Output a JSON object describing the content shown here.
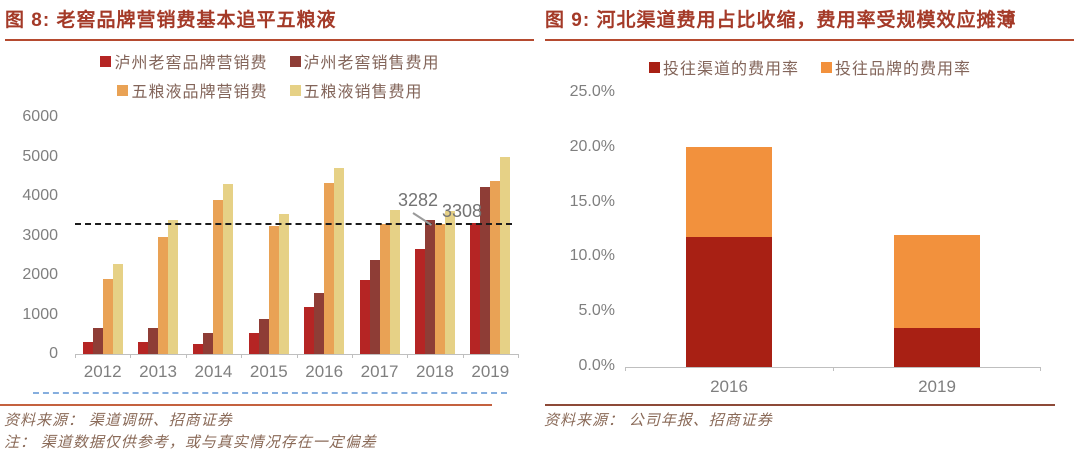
{
  "fig8": {
    "title": "图 8: 老窖品牌营销费基本追平五粮液",
    "source": "资料来源： 渠道调研、招商证券",
    "note": "注： 渠道数据仅供参考，或与真实情况存在一定偏差"
  },
  "fig9": {
    "title": "图 9: 河北渠道费用占比收缩，费用率受规模效应摊薄",
    "source": "资料来源： 公司年报、招商证券"
  },
  "chart_data": [
    {
      "type": "bar",
      "title": "图 8: 老窖品牌营销费基本追平五粮液",
      "categories": [
        "2012",
        "2013",
        "2014",
        "2015",
        "2016",
        "2017",
        "2018",
        "2019"
      ],
      "series": [
        {
          "name": "泸州老窖品牌营销费",
          "color": "#b52524",
          "values": [
            300,
            300,
            250,
            530,
            1200,
            1880,
            2650,
            3308
          ]
        },
        {
          "name": "泸州老窖销售费用",
          "color": "#8e3d36",
          "values": [
            650,
            660,
            530,
            880,
            1550,
            2390,
            3400,
            4220
          ]
        },
        {
          "name": "五粮液品牌营销费",
          "color": "#e9a255",
          "values": [
            1900,
            2960,
            3900,
            3250,
            4330,
            3280,
            3282,
            4370
          ]
        },
        {
          "name": "五粮液销售费用",
          "color": "#e6d186",
          "values": [
            2270,
            3400,
            4300,
            3550,
            4700,
            3640,
            3630,
            5000
          ]
        }
      ],
      "ylim": [
        0,
        6000
      ],
      "ytick_step": 1000,
      "yticks": [
        "0",
        "1000",
        "2000",
        "3000",
        "4000",
        "5000",
        "6000"
      ],
      "reference_line": 3300,
      "annotations": [
        {
          "text": "3282"
        },
        {
          "text": "3308"
        }
      ],
      "grid": false,
      "legend_position": "top"
    },
    {
      "type": "stacked-bar",
      "title": "图 9: 河北渠道费用占比收缩，费用率受规模效应摊薄",
      "categories": [
        "2016",
        "2019"
      ],
      "series": [
        {
          "name": "投往渠道的费用率",
          "color": "#a82014",
          "values": [
            11.9,
            3.6
          ]
        },
        {
          "name": "投往品牌的费用率",
          "color": "#f2913d",
          "values": [
            8.2,
            8.4
          ]
        }
      ],
      "ylim": [
        0,
        25
      ],
      "ytick_step": 5,
      "yticks": [
        "0.0%",
        "5.0%",
        "10.0%",
        "15.0%",
        "20.0%",
        "25.0%"
      ],
      "grid": false,
      "legend_position": "top"
    }
  ],
  "colors": {
    "title_text": "#a43a28",
    "title_rule": "#b54a2f",
    "axis_text": "#7f7f7f",
    "legend_text": "#83655a",
    "source_text": "#8a6a58",
    "reference_line": "#1c1c1c",
    "page_dash_line": "#85aede"
  }
}
